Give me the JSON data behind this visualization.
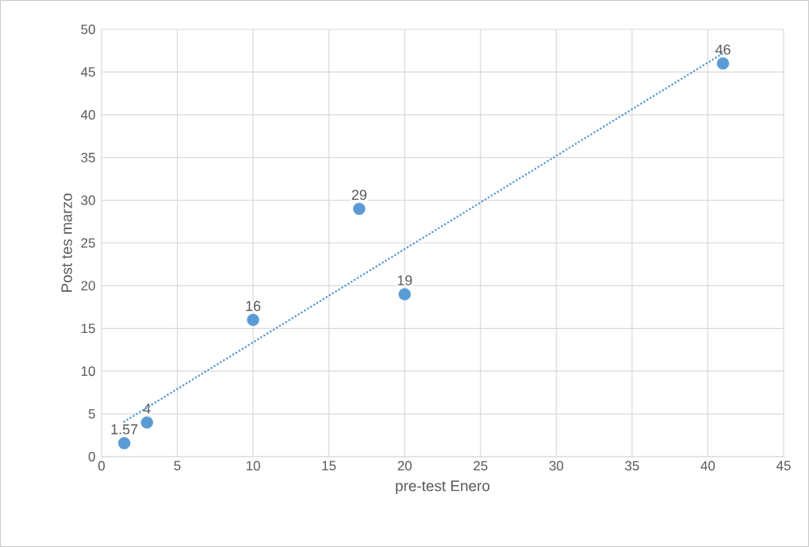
{
  "chart_data": {
    "type": "scatter",
    "xlabel": "pre-test Enero",
    "ylabel": "Post tes marzo",
    "xlim": [
      0,
      45
    ],
    "xticks": [
      0,
      5,
      10,
      15,
      20,
      25,
      30,
      35,
      40,
      45
    ],
    "ylim": [
      0,
      50
    ],
    "yticks": [
      0,
      5,
      10,
      15,
      20,
      25,
      30,
      35,
      40,
      45,
      50
    ],
    "grid": true,
    "series": [
      {
        "color": "#5b9bd5",
        "marker": "circle",
        "x": [
          1.5,
          3,
          10,
          17,
          20,
          41
        ],
        "values": [
          1.57,
          4,
          16,
          29,
          19,
          46
        ],
        "value_labels": [
          "1.57",
          "4",
          "16",
          "29",
          "19",
          "46"
        ]
      },
      {
        "type": "line",
        "marker": "none",
        "color": "#5b9bd5",
        "line_style": "dotted",
        "x": [
          1.5,
          41
        ],
        "values": [
          4.1,
          47.2
        ]
      }
    ]
  }
}
